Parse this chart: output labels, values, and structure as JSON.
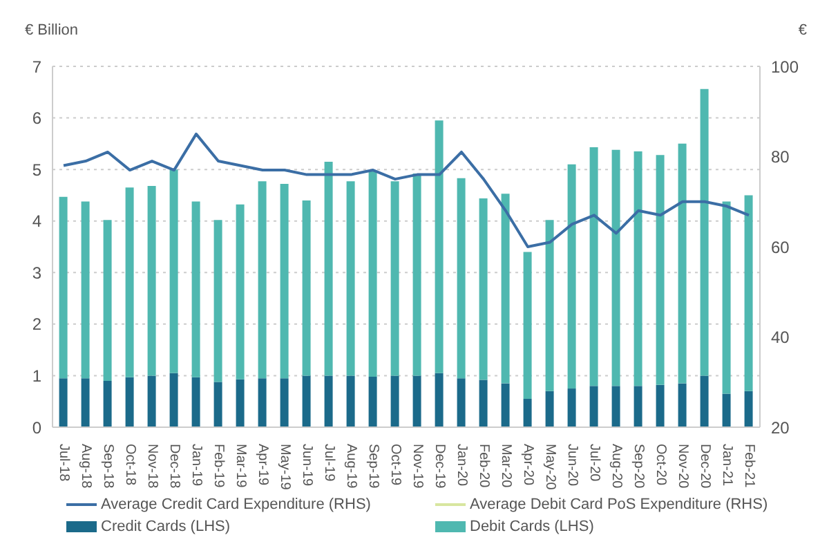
{
  "chart_data": {
    "type": "bar",
    "ylabel": "€ Billion",
    "y2label": "€",
    "stacked": true,
    "grid": "y",
    "legend": "bottom",
    "categories": [
      "Jul-18",
      "Aug-18",
      "Sep-18",
      "Oct-18",
      "Nov-18",
      "Dec-18",
      "Jan-19",
      "Feb-19",
      "Mar-19",
      "Apr-19",
      "May-19",
      "Jun-19",
      "Jul-19",
      "Aug-19",
      "Sep-19",
      "Oct-19",
      "Nov-19",
      "Dec-19",
      "Jan-20",
      "Feb-20",
      "Mar-20",
      "Apr-20",
      "May-20",
      "Jun-20",
      "Jul-20",
      "Aug-20",
      "Sep-20",
      "Oct-20",
      "Nov-20",
      "Dec-20",
      "Jan-21",
      "Feb-21"
    ],
    "ylim": [
      0,
      7
    ],
    "yticks": [
      0,
      1,
      2,
      3,
      4,
      5,
      6,
      7
    ],
    "y2lim": [
      20,
      100
    ],
    "y2ticks": [
      20,
      40,
      60,
      80,
      100
    ],
    "series": [
      {
        "name": "Credit Cards (LHS)",
        "color": "#1b6a8a",
        "values": [
          0.95,
          0.95,
          0.9,
          0.97,
          1.0,
          1.05,
          0.97,
          0.88,
          0.93,
          0.95,
          0.95,
          1.0,
          1.0,
          1.0,
          0.98,
          1.0,
          1.0,
          1.05,
          0.95,
          0.92,
          0.85,
          0.55,
          0.7,
          0.75,
          0.8,
          0.8,
          0.8,
          0.82,
          0.85,
          1.0,
          0.65,
          0.7
        ]
      },
      {
        "name": "Debit Cards (LHS)",
        "color": "#4fb8b0",
        "values": [
          3.52,
          3.43,
          3.12,
          3.68,
          3.68,
          3.95,
          3.41,
          3.14,
          3.39,
          3.82,
          3.77,
          3.4,
          4.15,
          3.77,
          4.0,
          3.77,
          3.92,
          4.9,
          3.88,
          3.52,
          3.68,
          2.85,
          3.32,
          4.35,
          4.63,
          4.58,
          4.55,
          4.46,
          4.65,
          5.56,
          3.73,
          3.8
        ]
      },
      {
        "name": "Average Credit Card Expenditure (RHS)",
        "type": "line",
        "axis": "y2",
        "color": "#3b6ea5",
        "values": [
          78,
          79,
          81,
          77,
          79,
          77,
          85,
          79,
          78,
          77,
          77,
          76,
          76,
          76,
          77,
          75,
          76,
          76,
          81,
          75,
          68,
          60,
          61,
          65,
          67,
          63,
          68,
          67,
          70,
          70,
          69,
          67
        ]
      },
      {
        "name": "Average Debit Card PoS Expenditure (RHS)",
        "type": "line",
        "axis": "y2",
        "color": "#d8e6a0",
        "values": [
          null,
          null,
          null,
          null,
          null,
          null,
          null,
          null,
          null,
          null,
          null,
          null,
          null,
          null,
          null,
          null,
          null,
          null,
          null,
          null,
          null,
          null,
          null,
          null,
          null,
          null,
          null,
          null,
          null,
          null,
          null,
          null
        ]
      }
    ]
  }
}
